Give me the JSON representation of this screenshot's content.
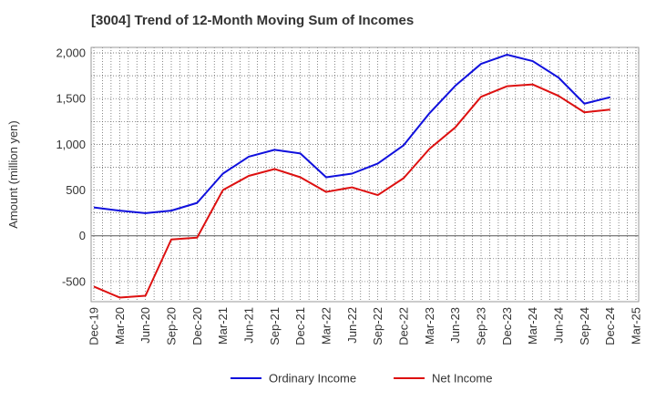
{
  "title": "[3004]  Trend of 12-Month Moving Sum of Incomes",
  "chart_data": {
    "type": "line",
    "title": "[3004]  Trend of 12-Month Moving Sum of Incomes",
    "xlabel": "",
    "ylabel": "Amount (million yen)",
    "ylim": [
      -720,
      2060
    ],
    "yticks": [
      -500,
      0,
      500,
      1000,
      1500,
      2000
    ],
    "ytick_labels": [
      "-500",
      "0",
      "500",
      "1,000",
      "1,500",
      "2,000"
    ],
    "categories": [
      "Dec-19",
      "Mar-20",
      "Jun-20",
      "Sep-20",
      "Dec-20",
      "Mar-21",
      "Jun-21",
      "Sep-21",
      "Dec-21",
      "Mar-22",
      "Jun-22",
      "Sep-22",
      "Dec-22",
      "Mar-23",
      "Jun-23",
      "Sep-23",
      "Dec-23",
      "Mar-24",
      "Jun-24",
      "Sep-24",
      "Dec-24",
      "Mar-25"
    ],
    "grid": true,
    "legend_position": "bottom",
    "series": [
      {
        "name": "Ordinary Income",
        "color": "#1010dd",
        "values": [
          310,
          275,
          248,
          275,
          360,
          680,
          865,
          940,
          900,
          640,
          680,
          790,
          990,
          1340,
          1640,
          1880,
          1980,
          1910,
          1730,
          1445,
          1515,
          null
        ]
      },
      {
        "name": "Net Income",
        "color": "#dd1010",
        "values": [
          -555,
          -675,
          -655,
          -40,
          -20,
          500,
          655,
          730,
          640,
          480,
          530,
          445,
          630,
          950,
          1185,
          1520,
          1635,
          1655,
          1530,
          1350,
          1380,
          null
        ]
      }
    ]
  }
}
